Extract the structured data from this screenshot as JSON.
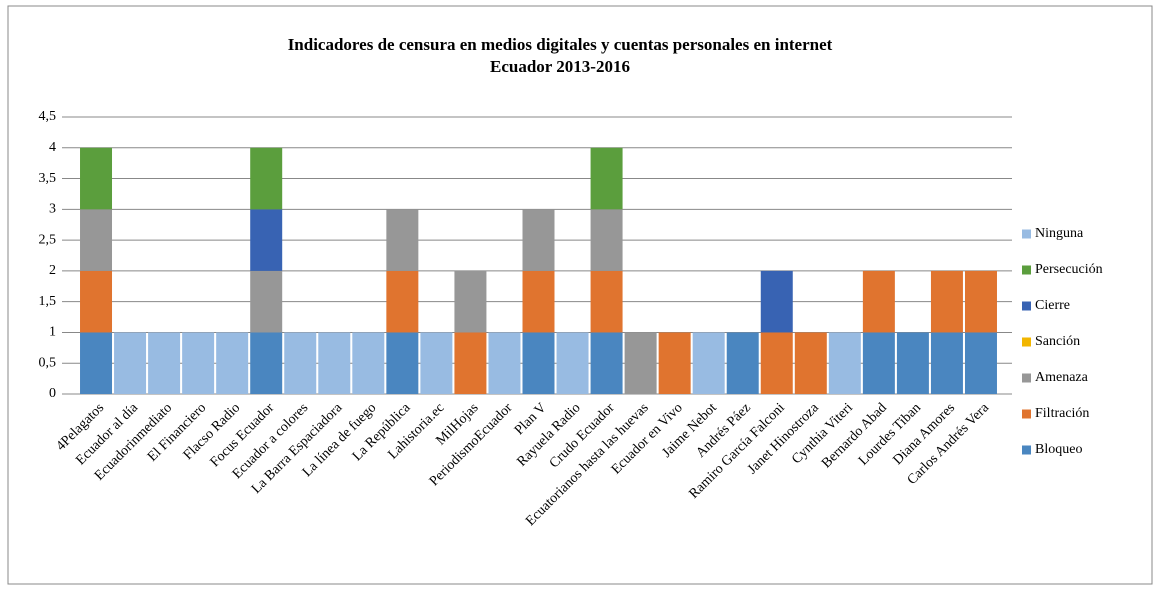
{
  "chart_data": {
    "type": "stacked_bar",
    "title": "Indicadores de censura en medios digitales y cuentas personales en internet",
    "subtitle": "Ecuador 2013-2016",
    "categories": [
      "4Pelagatos",
      "Ecuador al día",
      "Ecuadorinmediato",
      "El Financiero",
      "Flacso Radio",
      "Focus Ecuador",
      "Ecuador a colores",
      "La Barra Espaciadora",
      "La línea de fuego",
      "La República",
      "Lahistoria.ec",
      "MilHojas",
      "PeriodismoEcuador",
      "Plan V",
      "Rayuela Radio",
      "Crudo Ecuador",
      "Ecuatorianos hasta las huevas",
      "Ecuador en Vivo",
      "Jaime Nebot",
      "Andrés Páez",
      "Ramiro García Falconi",
      "Janet Hinostroza",
      "Cynthia Viteri",
      "Bernardo Abad",
      "Lourdes Tiban",
      "Diana Amores",
      "Carlos Andrés Vera"
    ],
    "series": [
      {
        "name": "Bloqueo",
        "color": "#4a86c0",
        "values": [
          1,
          0,
          0,
          0,
          0,
          1,
          0,
          0,
          0,
          1,
          0,
          0,
          0,
          1,
          0,
          1,
          0,
          0,
          0,
          1,
          0,
          0,
          0,
          1,
          1,
          1,
          1
        ]
      },
      {
        "name": "Filtración",
        "color": "#e0742f",
        "values": [
          1,
          0,
          0,
          0,
          0,
          0,
          0,
          0,
          0,
          1,
          0,
          1,
          0,
          1,
          0,
          1,
          0,
          1,
          0,
          0,
          1,
          1,
          0,
          1,
          0,
          1,
          1
        ]
      },
      {
        "name": "Amenaza",
        "color": "#979797",
        "values": [
          1,
          0,
          0,
          0,
          0,
          1,
          0,
          0,
          0,
          1,
          0,
          1,
          0,
          1,
          0,
          1,
          1,
          0,
          0,
          0,
          0,
          0,
          0,
          0,
          0,
          0,
          0
        ]
      },
      {
        "name": "Sanción",
        "color": "#f2b600",
        "values": [
          0,
          0,
          0,
          0,
          0,
          0,
          0,
          0,
          0,
          0,
          0,
          0,
          0,
          0,
          0,
          0,
          0,
          0,
          0,
          0,
          0,
          0,
          0,
          0,
          0,
          0,
          0
        ]
      },
      {
        "name": "Cierre",
        "color": "#3863b3",
        "values": [
          0,
          0,
          0,
          0,
          0,
          1,
          0,
          0,
          0,
          0,
          0,
          0,
          0,
          0,
          0,
          0,
          0,
          0,
          0,
          0,
          1,
          0,
          0,
          0,
          0,
          0,
          0
        ]
      },
      {
        "name": "Persecución",
        "color": "#5b9e3d",
        "values": [
          1,
          0,
          0,
          0,
          0,
          1,
          0,
          0,
          0,
          0,
          0,
          0,
          0,
          0,
          0,
          1,
          0,
          0,
          0,
          0,
          0,
          0,
          0,
          0,
          0,
          0,
          0
        ]
      },
      {
        "name": "Ninguna",
        "color": "#98bbe2",
        "values": [
          0,
          1,
          1,
          1,
          1,
          0,
          1,
          1,
          1,
          0,
          1,
          0,
          1,
          0,
          1,
          0,
          0,
          0,
          1,
          0,
          0,
          0,
          1,
          0,
          0,
          0,
          0
        ]
      }
    ],
    "ylim": [
      0,
      4.5
    ],
    "yticks": [
      0,
      {
        "value": 0.5,
        "label": "0,5"
      },
      1,
      {
        "value": 1.5,
        "label": "1,5"
      },
      2,
      {
        "value": 2.5,
        "label": "2,5"
      },
      3,
      {
        "value": 3.5,
        "label": "3,5"
      },
      4,
      {
        "value": 4.5,
        "label": "4,5"
      }
    ],
    "grid": true,
    "legend": "right"
  }
}
